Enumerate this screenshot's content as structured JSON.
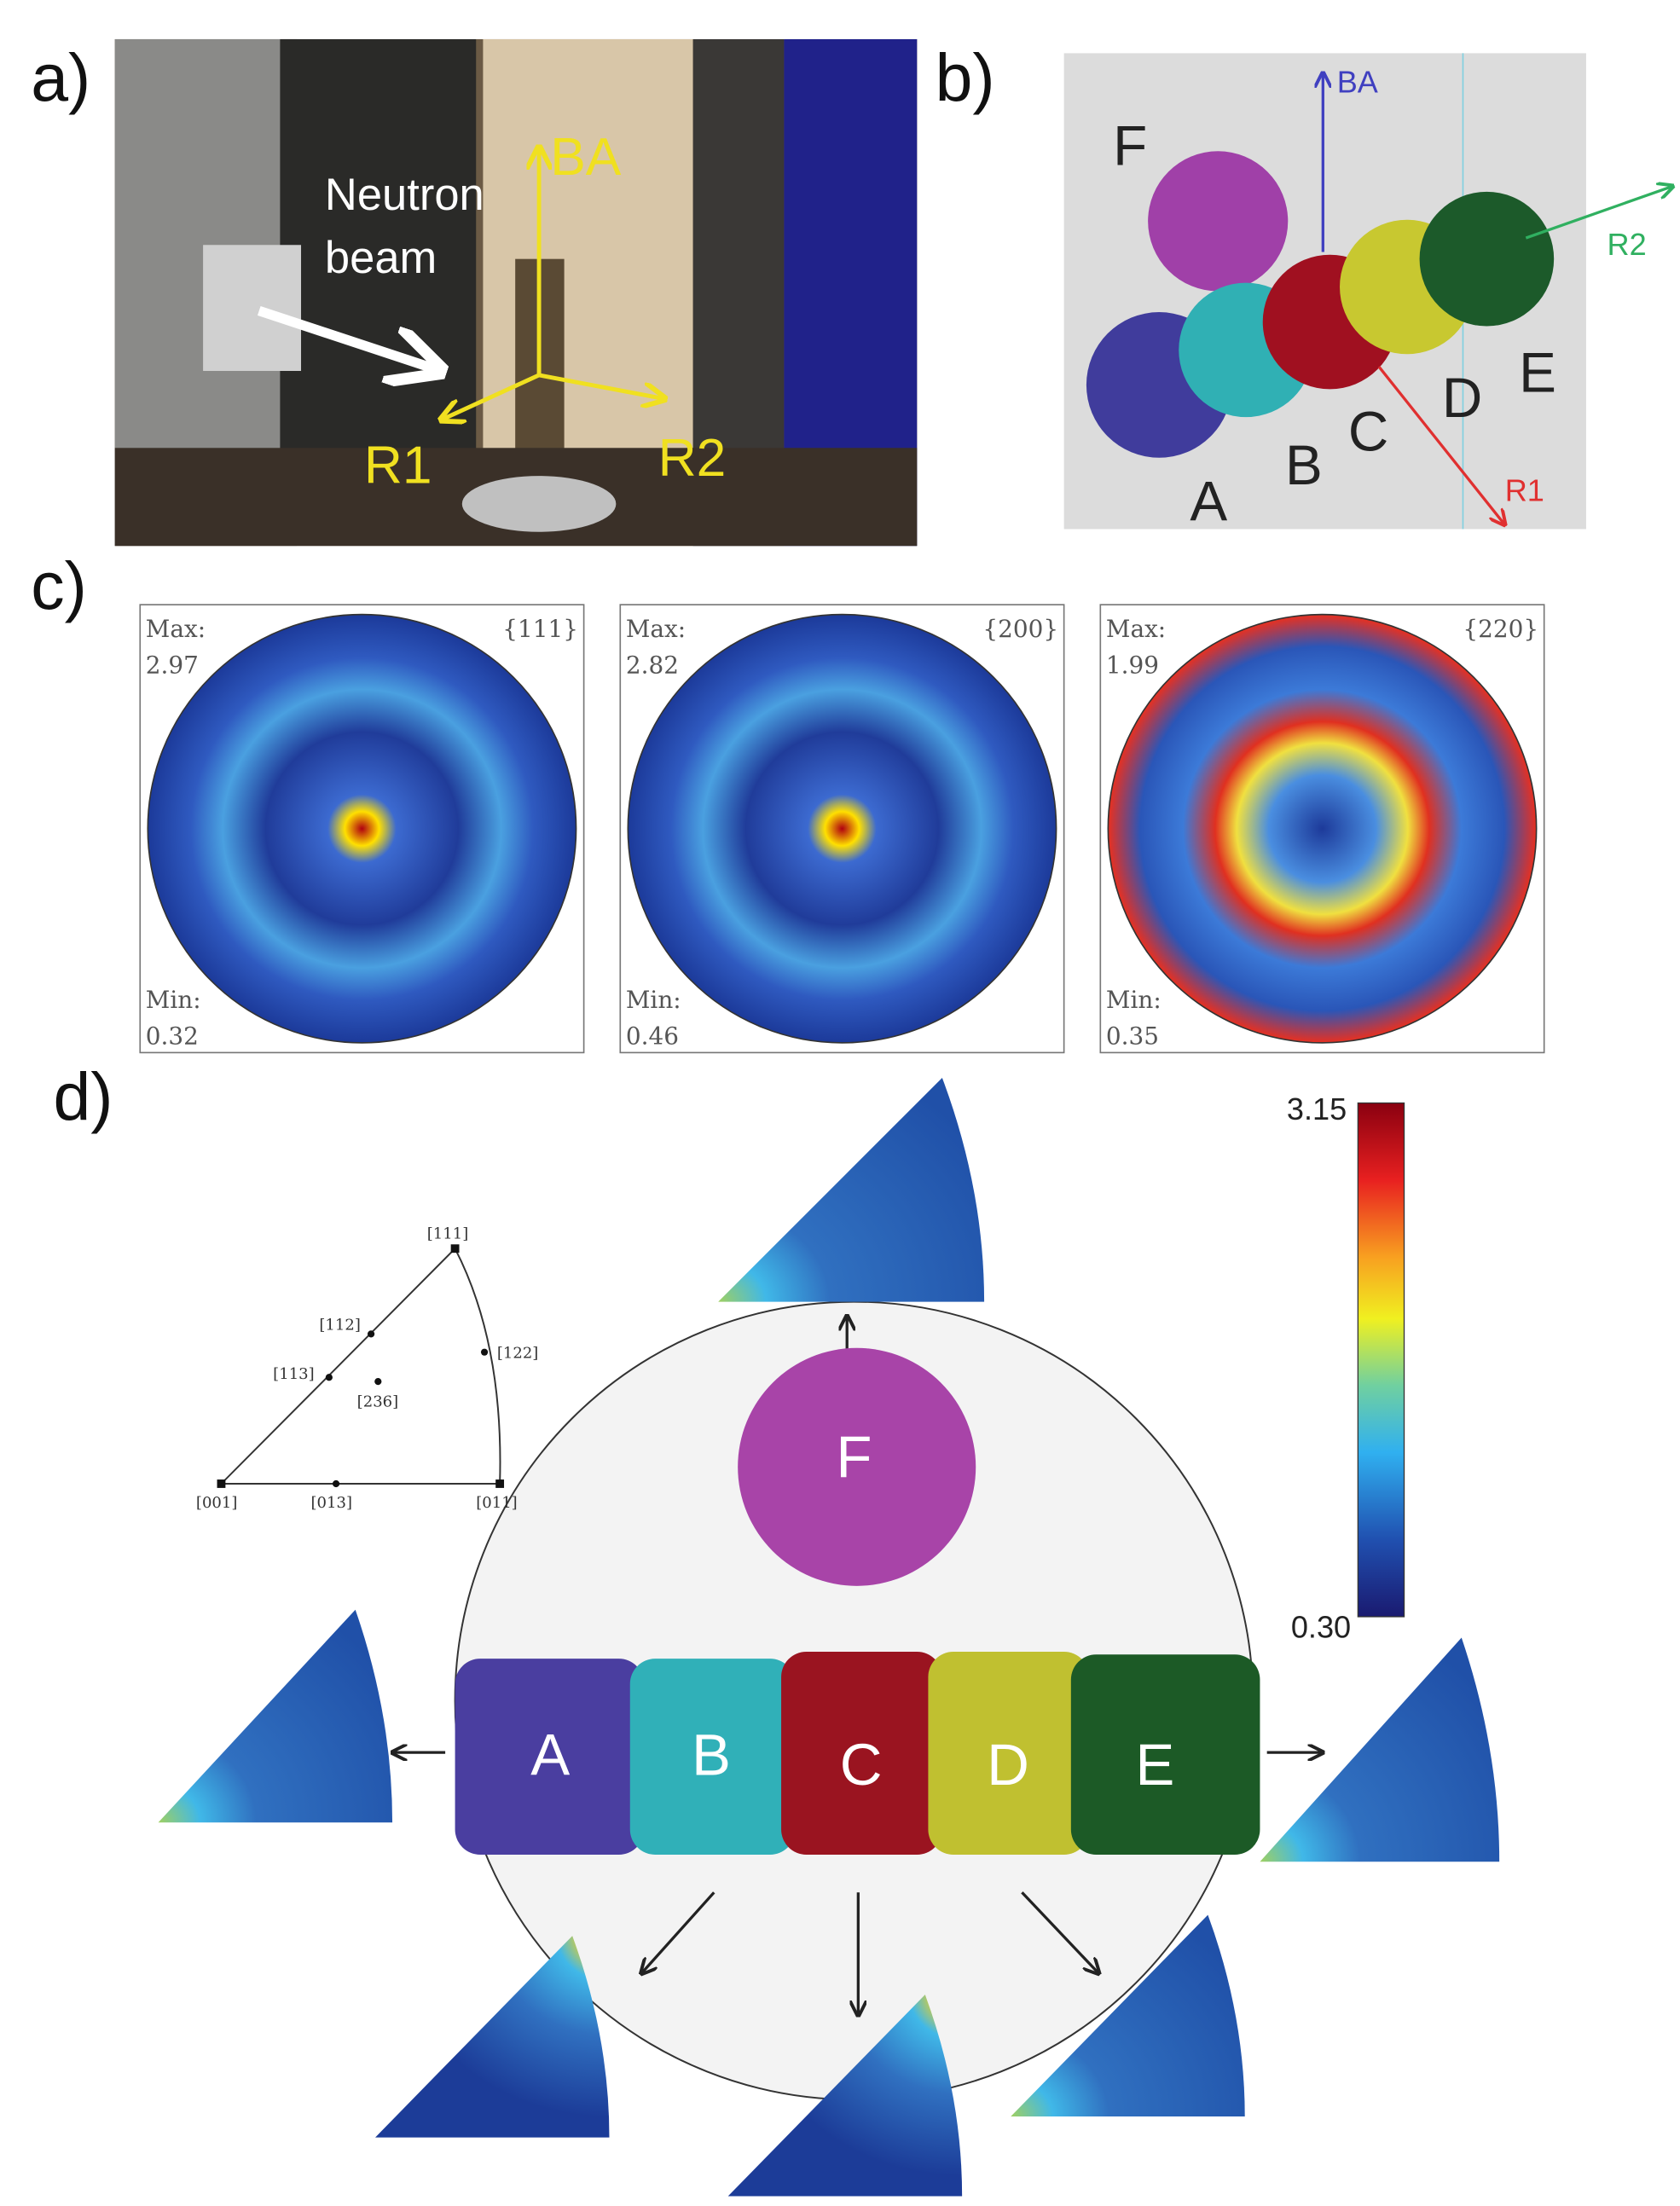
{
  "panel_a": {
    "label": "a)",
    "annotations": {
      "neutron": "Neutron",
      "beam": "beam",
      "ba": "BA",
      "r1": "R1",
      "r2": "R2"
    }
  },
  "panel_b": {
    "label": "b)",
    "axes": {
      "ba": "BA",
      "r1": "R1",
      "r2": "R2"
    },
    "cubes": [
      "A",
      "B",
      "C",
      "D",
      "E",
      "F"
    ]
  },
  "panel_c": {
    "label": "c)",
    "figures": [
      {
        "plane": "{111}",
        "max_label": "Max:",
        "max": "2.97",
        "min_label": "Min:",
        "min": "0.32"
      },
      {
        "plane": "{200}",
        "max_label": "Max:",
        "max": "2.82",
        "min_label": "Min:",
        "min": "0.46"
      },
      {
        "plane": "{220}",
        "max_label": "Max:",
        "max": "1.99",
        "min_label": "Min:",
        "min": "0.35"
      }
    ]
  },
  "panel_d": {
    "label": "d)",
    "key_labels": [
      "[111]",
      "[112]",
      "[113]",
      "[122]",
      "[236]",
      "[001]",
      "[013]",
      "[011]"
    ],
    "colorbar": {
      "max": "3.15",
      "min": "0.30"
    },
    "cubes": [
      "A",
      "B",
      "C",
      "D",
      "E",
      "F"
    ]
  }
}
